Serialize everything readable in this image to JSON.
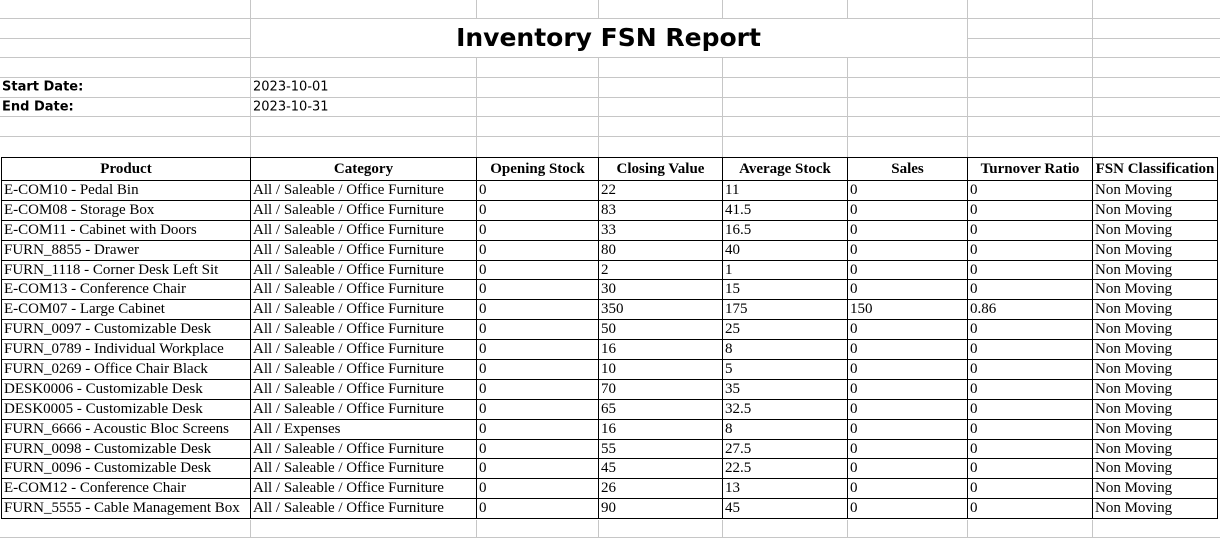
{
  "title": "Inventory FSN Report",
  "filters": {
    "start_date": {
      "label": "Start Date:",
      "value": "2023-10-01"
    },
    "end_date": {
      "label": "End Date:",
      "value": "2023-10-31"
    }
  },
  "table": {
    "headers": [
      "Product",
      "Category",
      "Opening Stock",
      "Closing Value",
      "Average Stock",
      "Sales",
      "Turnover Ratio",
      "FSN Classification"
    ],
    "rows": [
      [
        "E-COM10 - Pedal Bin",
        "All / Saleable / Office Furniture",
        "0",
        "22",
        "11",
        "0",
        "0",
        "Non Moving"
      ],
      [
        "E-COM08 - Storage Box",
        "All / Saleable / Office Furniture",
        "0",
        "83",
        "41.5",
        "0",
        "0",
        "Non Moving"
      ],
      [
        "E-COM11 - Cabinet with Doors",
        "All / Saleable / Office Furniture",
        "0",
        "33",
        "16.5",
        "0",
        "0",
        "Non Moving"
      ],
      [
        "FURN_8855 - Drawer",
        "All / Saleable / Office Furniture",
        "0",
        "80",
        "40",
        "0",
        "0",
        "Non Moving"
      ],
      [
        "FURN_1118 - Corner Desk Left Sit",
        "All / Saleable / Office Furniture",
        "0",
        "2",
        "1",
        "0",
        "0",
        "Non Moving"
      ],
      [
        "E-COM13 - Conference Chair",
        "All / Saleable / Office Furniture",
        "0",
        "30",
        "15",
        "0",
        "0",
        "Non Moving"
      ],
      [
        "E-COM07 - Large Cabinet",
        "All / Saleable / Office Furniture",
        "0",
        "350",
        "175",
        "150",
        "0.86",
        "Non Moving"
      ],
      [
        "FURN_0097 - Customizable Desk",
        "All / Saleable / Office Furniture",
        "0",
        "50",
        "25",
        "0",
        "0",
        "Non Moving"
      ],
      [
        "FURN_0789 - Individual Workplace",
        "All / Saleable / Office Furniture",
        "0",
        "16",
        "8",
        "0",
        "0",
        "Non Moving"
      ],
      [
        "FURN_0269 - Office Chair Black",
        "All / Saleable / Office Furniture",
        "0",
        "10",
        "5",
        "0",
        "0",
        "Non Moving"
      ],
      [
        "DESK0006 - Customizable Desk",
        "All / Saleable / Office Furniture",
        "0",
        "70",
        "35",
        "0",
        "0",
        "Non Moving"
      ],
      [
        "DESK0005 - Customizable Desk",
        "All / Saleable / Office Furniture",
        "0",
        "65",
        "32.5",
        "0",
        "0",
        "Non Moving"
      ],
      [
        "FURN_6666 - Acoustic Bloc Screens",
        "All / Expenses",
        "0",
        "16",
        "8",
        "0",
        "0",
        "Non Moving"
      ],
      [
        "FURN_0098 - Customizable Desk",
        "All / Saleable / Office Furniture",
        "0",
        "55",
        "27.5",
        "0",
        "0",
        "Non Moving"
      ],
      [
        "FURN_0096 - Customizable Desk",
        "All / Saleable / Office Furniture",
        "0",
        "45",
        "22.5",
        "0",
        "0",
        "Non Moving"
      ],
      [
        "E-COM12 - Conference Chair",
        "All / Saleable / Office Furniture",
        "0",
        "26",
        "13",
        "0",
        "0",
        "Non Moving"
      ],
      [
        "FURN_5555 - Cable Management Box",
        "All / Saleable / Office Furniture",
        "0",
        "90",
        "45",
        "0",
        "0",
        "Non Moving"
      ]
    ]
  },
  "colors": {
    "background": "#ffffff",
    "text": "#000000",
    "grid_line": "#c6c6c6",
    "table_border": "#000000"
  }
}
